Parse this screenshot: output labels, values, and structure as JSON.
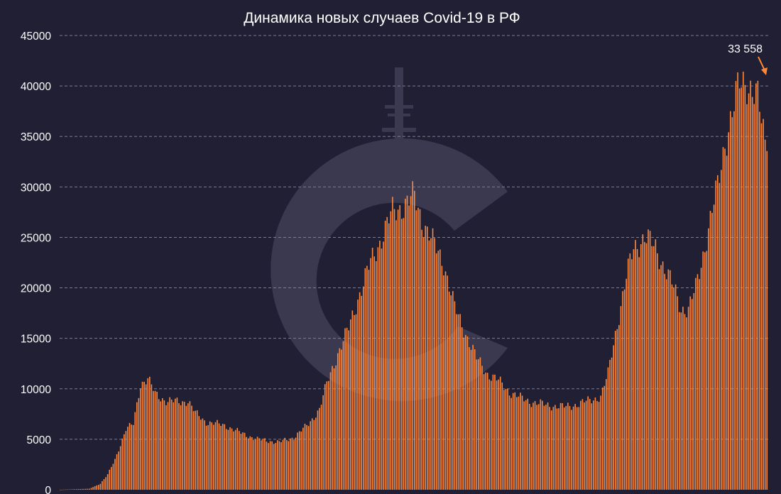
{
  "chart_data": {
    "type": "bar",
    "title": "Динамика новых случаев Covid-19 в РФ",
    "xlabel": "",
    "ylabel": "",
    "ylim": [
      0,
      45000
    ],
    "yticks": [
      0,
      5000,
      10000,
      15000,
      20000,
      25000,
      30000,
      35000,
      40000,
      45000
    ],
    "grid": true,
    "colors": {
      "bar": "#ff8a3d",
      "background": "#201f33",
      "arrow": "#ff8a3d"
    },
    "annotation": {
      "text": "33  558",
      "value": 33558
    },
    "trend_anchors": [
      [
        0,
        5
      ],
      [
        16,
        100
      ],
      [
        22,
        600
      ],
      [
        26,
        1500
      ],
      [
        30,
        3000
      ],
      [
        36,
        6000
      ],
      [
        40,
        6500
      ],
      [
        44,
        10500
      ],
      [
        48,
        11000
      ],
      [
        52,
        9500
      ],
      [
        58,
        8800
      ],
      [
        66,
        8700
      ],
      [
        70,
        8800
      ],
      [
        74,
        7600
      ],
      [
        80,
        6700
      ],
      [
        90,
        6400
      ],
      [
        98,
        5700
      ],
      [
        108,
        5000
      ],
      [
        120,
        4700
      ],
      [
        128,
        5200
      ],
      [
        136,
        6500
      ],
      [
        142,
        8000
      ],
      [
        146,
        10500
      ],
      [
        152,
        13500
      ],
      [
        158,
        16000
      ],
      [
        164,
        19500
      ],
      [
        170,
        22500
      ],
      [
        176,
        25000
      ],
      [
        182,
        27500
      ],
      [
        188,
        28200
      ],
      [
        194,
        29000
      ],
      [
        198,
        26800
      ],
      [
        204,
        24500
      ],
      [
        210,
        22500
      ],
      [
        216,
        18000
      ],
      [
        222,
        15500
      ],
      [
        228,
        13000
      ],
      [
        234,
        11500
      ],
      [
        240,
        10800
      ],
      [
        246,
        9700
      ],
      [
        252,
        9100
      ],
      [
        258,
        8700
      ],
      [
        266,
        8400
      ],
      [
        276,
        8200
      ],
      [
        284,
        8500
      ],
      [
        292,
        9000
      ],
      [
        296,
        9200
      ],
      [
        300,
        11500
      ],
      [
        304,
        15500
      ],
      [
        306,
        17300
      ],
      [
        310,
        21000
      ],
      [
        314,
        24000
      ],
      [
        320,
        25000
      ],
      [
        326,
        24000
      ],
      [
        332,
        21500
      ],
      [
        336,
        20000
      ],
      [
        340,
        18000
      ],
      [
        344,
        17800
      ],
      [
        348,
        20000
      ],
      [
        354,
        25000
      ],
      [
        360,
        30000
      ],
      [
        364,
        34500
      ],
      [
        368,
        37200
      ],
      [
        372,
        40200
      ],
      [
        376,
        40600
      ],
      [
        378,
        39800
      ],
      [
        382,
        38500
      ],
      [
        384,
        36500
      ],
      [
        387,
        33558
      ]
    ],
    "values": []
  },
  "watermark": "cc-logo"
}
